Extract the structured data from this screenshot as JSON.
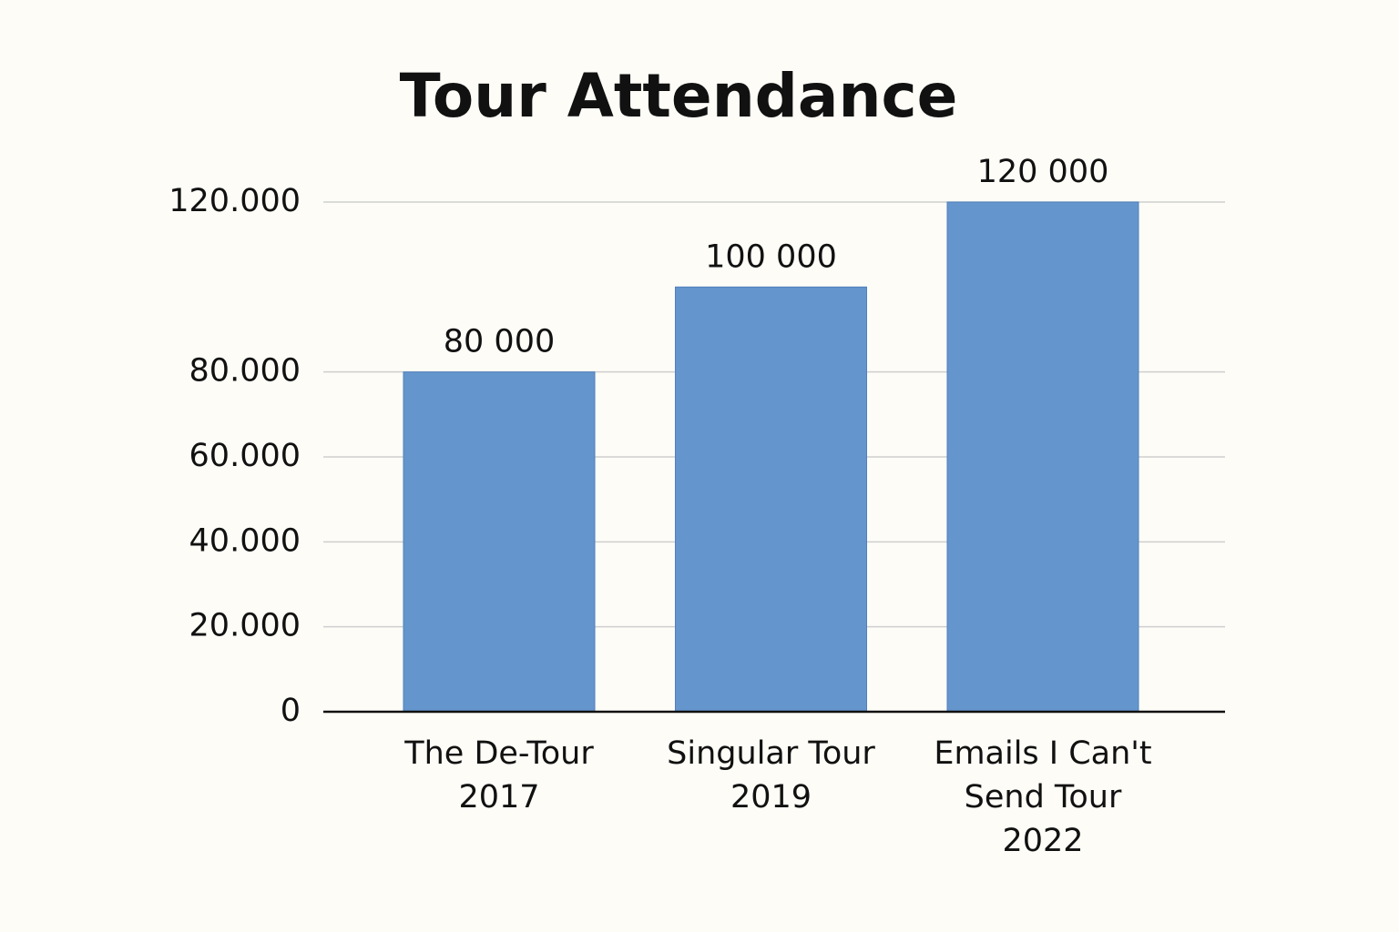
{
  "chart_data": {
    "type": "bar",
    "title": "Tour Attendance",
    "categories": [
      "The De-Tour 2017",
      "Singular Tour 2019",
      "Emails I Can't Send Tour 2022"
    ],
    "values": [
      80000,
      100000,
      120000
    ],
    "value_labels": [
      "80 000",
      "100 000",
      "120 000"
    ],
    "color": "#6495cc",
    "ylim": [
      0,
      120000
    ],
    "yticks": [
      0,
      {
        "value": 20000,
        "label": "20.000"
      },
      {
        "value": 40000,
        "label": "40.000"
      },
      {
        "value": 60000,
        "label": "60.000"
      },
      {
        "value": 80000,
        "label": "80.000"
      },
      {
        "value": 120000,
        "label": "120.000"
      }
    ],
    "grid": true
  }
}
